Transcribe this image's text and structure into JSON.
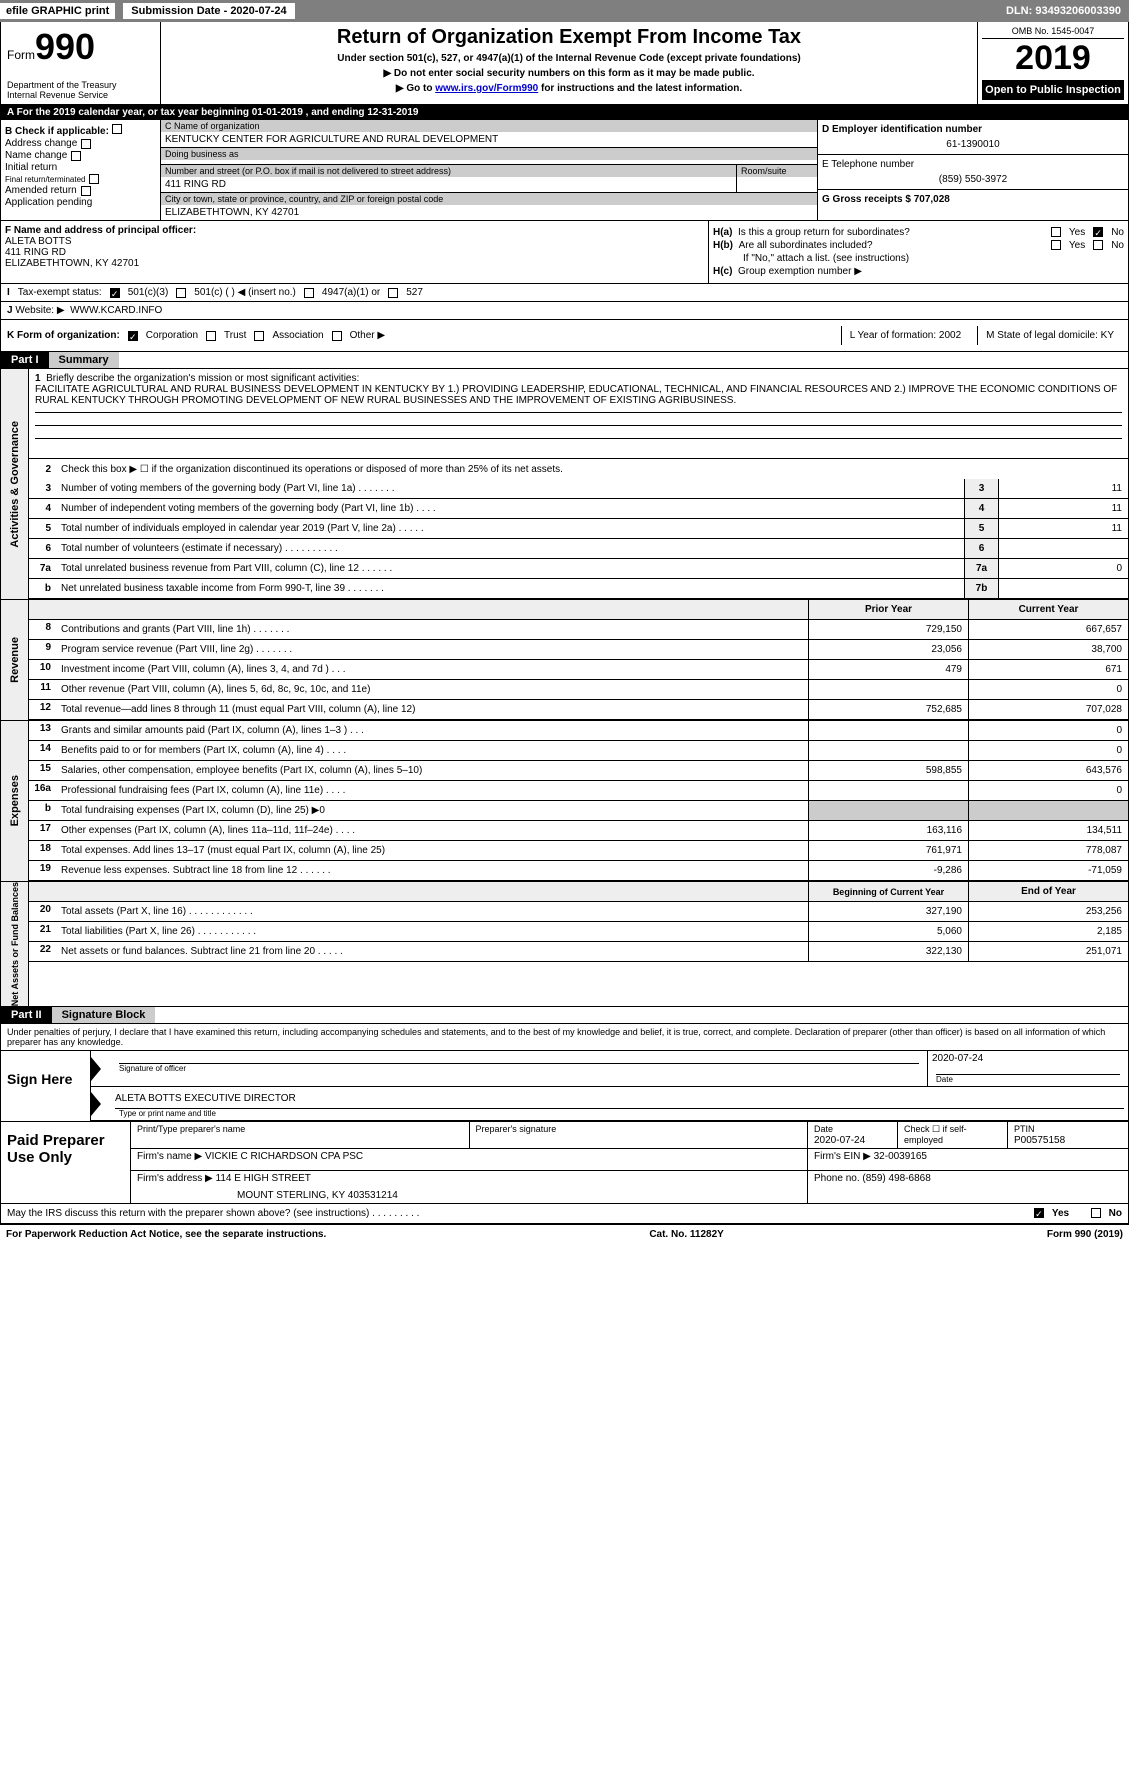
{
  "header": {
    "efile": "efile GRAPHIC print",
    "submission": "Submission Date - 2020-07-24",
    "dln": "DLN: 93493206003390",
    "form_label": "Form",
    "form_num": "990",
    "dept": "Department of the Treasury\nInternal Revenue Service",
    "title": "Return of Organization Exempt From Income Tax",
    "sub1": "Under section 501(c), 527, or 4947(a)(1) of the Internal Revenue Code (except private foundations)",
    "sub2": "▶ Do not enter social security numbers on this form as it may be made public.",
    "sub3": "▶ Go to www.irs.gov/Form990 for instructions and the latest information.",
    "omb": "OMB No. 1545-0047",
    "year": "2019",
    "open": "Open to Public Inspection"
  },
  "section_a": {
    "cal_year": "A   For the 2019 calendar year, or tax year beginning 01-01-2019          , and ending 12-31-2019",
    "b_label": "B Check if applicable:",
    "b_items": [
      "Address change",
      "Name change",
      "Initial return",
      "Final return/terminated",
      "Amended return",
      "Application pending"
    ],
    "c_name_label": "C Name of organization",
    "c_name": "KENTUCKY CENTER FOR AGRICULTURE AND RURAL DEVELOPMENT",
    "dba_label": "Doing business as",
    "dba": "",
    "addr_label": "Number and street (or P.O. box if mail is not delivered to street address)",
    "addr": "411 RING RD",
    "room_label": "Room/suite",
    "city_label": "City or town, state or province, country, and ZIP or foreign postal code",
    "city": "ELIZABETHTOWN, KY  42701",
    "d_label": "D Employer identification number",
    "d_val": "61-1390010",
    "e_label": "E Telephone number",
    "e_val": "(859) 550-3972",
    "g_label": "G Gross receipts $ 707,028",
    "f_label": "F  Name and address of principal officer:",
    "f_val": "ALETA BOTTS\n411 RING RD\nELIZABETHTOWN, KY  42701",
    "ha_label": "H(a)",
    "ha_text": "Is this a group return for subordinates?",
    "hb_label": "H(b)",
    "hb_text": "Are all subordinates included?",
    "hb_note": "If \"No,\" attach a list. (see instructions)",
    "hc_label": "H(c)",
    "hc_text": "Group exemption number ▶",
    "yes": "Yes",
    "no": "No",
    "i_label": "I",
    "i_text": "Tax-exempt status:",
    "i_501c3": "501(c)(3)",
    "i_501c": "501(c) (   ) ◀ (insert no.)",
    "i_4947": "4947(a)(1) or",
    "i_527": "527",
    "j_label": "J",
    "j_text": "Website: ▶",
    "j_val": "WWW.KCARD.INFO",
    "k_label": "K Form of organization:",
    "k_corp": "Corporation",
    "k_trust": "Trust",
    "k_assoc": "Association",
    "k_other": "Other ▶",
    "l_label": "L Year of formation: 2002",
    "m_label": "M State of legal domicile: KY"
  },
  "part1": {
    "header": "Part I",
    "title": "Summary",
    "vert1": "Activities & Governance",
    "line1_label": "Briefly describe the organization's mission or most significant activities:",
    "line1": "FACILITATE AGRICULTURAL AND RURAL BUSINESS DEVELOPMENT IN KENTUCKY BY 1.) PROVIDING LEADERSHIP, EDUCATIONAL, TECHNICAL, AND FINANCIAL RESOURCES AND 2.) IMPROVE THE ECONOMIC CONDITIONS OF RURAL KENTUCKY THROUGH PROMOTING DEVELOPMENT OF NEW RURAL BUSINESSES AND THE IMPROVEMENT OF EXISTING AGRIBUSINESS.",
    "line2": "Check this box ▶ ☐  if the organization discontinued its operations or disposed of more than 25% of its net assets.",
    "rows_gov": [
      {
        "n": "3",
        "desc": "Number of voting members of the governing body (Part VI, line 1a)    .    .    .    .    .    .    .",
        "box": "3",
        "val": "11"
      },
      {
        "n": "4",
        "desc": "Number of independent voting members of the governing body (Part VI, line 1b)   .    .    .    .",
        "box": "4",
        "val": "11"
      },
      {
        "n": "5",
        "desc": "Total number of individuals employed in calendar year 2019 (Part V, line 2a)   .    .    .    .    .",
        "box": "5",
        "val": "11"
      },
      {
        "n": "6",
        "desc": "Total number of volunteers (estimate if necessary)   .    .    .    .    .    .    .    .    .    .",
        "box": "6",
        "val": ""
      },
      {
        "n": "7a",
        "desc": "Total unrelated business revenue from Part VIII, column (C), line 12   .    .    .    .    .    .",
        "box": "7a",
        "val": "0"
      },
      {
        "n": "b",
        "desc": "Net unrelated business taxable income from Form 990-T, line 39   .    .    .    .    .    .    .",
        "box": "7b",
        "val": ""
      }
    ],
    "vert2": "Revenue",
    "prior": "Prior Year",
    "curr": "Current Year",
    "rows_rev": [
      {
        "n": "8",
        "desc": "Contributions and grants (Part VIII, line 1h)   .    .    .    .    .    .    .",
        "p": "729,150",
        "c": "667,657"
      },
      {
        "n": "9",
        "desc": "Program service revenue (Part VIII, line 2g)   .    .    .    .    .    .    .",
        "p": "23,056",
        "c": "38,700"
      },
      {
        "n": "10",
        "desc": "Investment income (Part VIII, column (A), lines 3, 4, and 7d )   .    .    .",
        "p": "479",
        "c": "671"
      },
      {
        "n": "11",
        "desc": "Other revenue (Part VIII, column (A), lines 5, 6d, 8c, 9c, 10c, and 11e)",
        "p": "",
        "c": "0"
      },
      {
        "n": "12",
        "desc": "Total revenue—add lines 8 through 11 (must equal Part VIII, column (A), line 12)",
        "p": "752,685",
        "c": "707,028"
      }
    ],
    "vert3": "Expenses",
    "rows_exp": [
      {
        "n": "13",
        "desc": "Grants and similar amounts paid (Part IX, column (A), lines 1–3 )   .    .    .",
        "p": "",
        "c": "0"
      },
      {
        "n": "14",
        "desc": "Benefits paid to or for members (Part IX, column (A), line 4)   .    .    .    .",
        "p": "",
        "c": "0"
      },
      {
        "n": "15",
        "desc": "Salaries, other compensation, employee benefits (Part IX, column (A), lines 5–10)",
        "p": "598,855",
        "c": "643,576"
      },
      {
        "n": "16a",
        "desc": "Professional fundraising fees (Part IX, column (A), line 11e)   .    .    .    .",
        "p": "",
        "c": "0"
      },
      {
        "n": "b",
        "desc": "Total fundraising expenses (Part IX, column (D), line 25) ▶0",
        "p": "shade",
        "c": "shade"
      },
      {
        "n": "17",
        "desc": "Other expenses (Part IX, column (A), lines 11a–11d, 11f–24e)   .    .    .    .",
        "p": "163,116",
        "c": "134,511"
      },
      {
        "n": "18",
        "desc": "Total expenses. Add lines 13–17 (must equal Part IX, column (A), line 25)",
        "p": "761,971",
        "c": "778,087"
      },
      {
        "n": "19",
        "desc": "Revenue less expenses. Subtract line 18 from line 12   .    .    .    .    .    .",
        "p": "-9,286",
        "c": "-71,059"
      }
    ],
    "vert4": "Net Assets or Fund Balances",
    "beg": "Beginning of Current Year",
    "end": "End of Year",
    "rows_net": [
      {
        "n": "20",
        "desc": "Total assets (Part X, line 16)   .    .    .    .    .    .    .    .    .    .    .    .",
        "p": "327,190",
        "c": "253,256"
      },
      {
        "n": "21",
        "desc": "Total liabilities (Part X, line 26)   .    .    .    .    .    .    .    .    .    .    .",
        "p": "5,060",
        "c": "2,185"
      },
      {
        "n": "22",
        "desc": "Net assets or fund balances. Subtract line 21 from line 20   .    .    .    .    .",
        "p": "322,130",
        "c": "251,071"
      }
    ]
  },
  "part2": {
    "header": "Part II",
    "title": "Signature Block",
    "penalty": "Under penalties of perjury, I declare that I have examined this return, including accompanying schedules and statements, and to the best of my knowledge and belief, it is true, correct, and complete. Declaration of preparer (other than officer) is based on all information of which preparer has any knowledge.",
    "sign_here": "Sign Here",
    "sig_officer": "Signature of officer",
    "sig_date": "2020-07-24",
    "date_label": "Date",
    "officer_name": "ALETA BOTTS  EXECUTIVE DIRECTOR",
    "name_label": "Type or print name and title",
    "paid": "Paid Preparer Use Only",
    "prep_name_label": "Print/Type preparer's name",
    "prep_sig_label": "Preparer's signature",
    "prep_date_label": "Date",
    "prep_date": "2020-07-24",
    "check_label": "Check ☐ if self-employed",
    "ptin_label": "PTIN",
    "ptin": "P00575158",
    "firm_name_label": "Firm's name    ▶",
    "firm_name": "VICKIE C RICHARDSON CPA PSC",
    "firm_ein_label": "Firm's EIN ▶",
    "firm_ein": "32-0039165",
    "firm_addr_label": "Firm's address ▶",
    "firm_addr": "114 E HIGH STREET",
    "firm_city": "MOUNT STERLING, KY   403531214",
    "phone_label": "Phone no.",
    "phone": "(859) 498-6868",
    "discuss": "May the IRS discuss this return with the preparer shown above? (see instructions)   .    .    .    .    .    .    .    .    .",
    "yes": "Yes",
    "no": "No"
  },
  "footer": {
    "left": "For Paperwork Reduction Act Notice, see the separate instructions.",
    "mid": "Cat. No. 11282Y",
    "right": "Form 990 (2019)"
  }
}
